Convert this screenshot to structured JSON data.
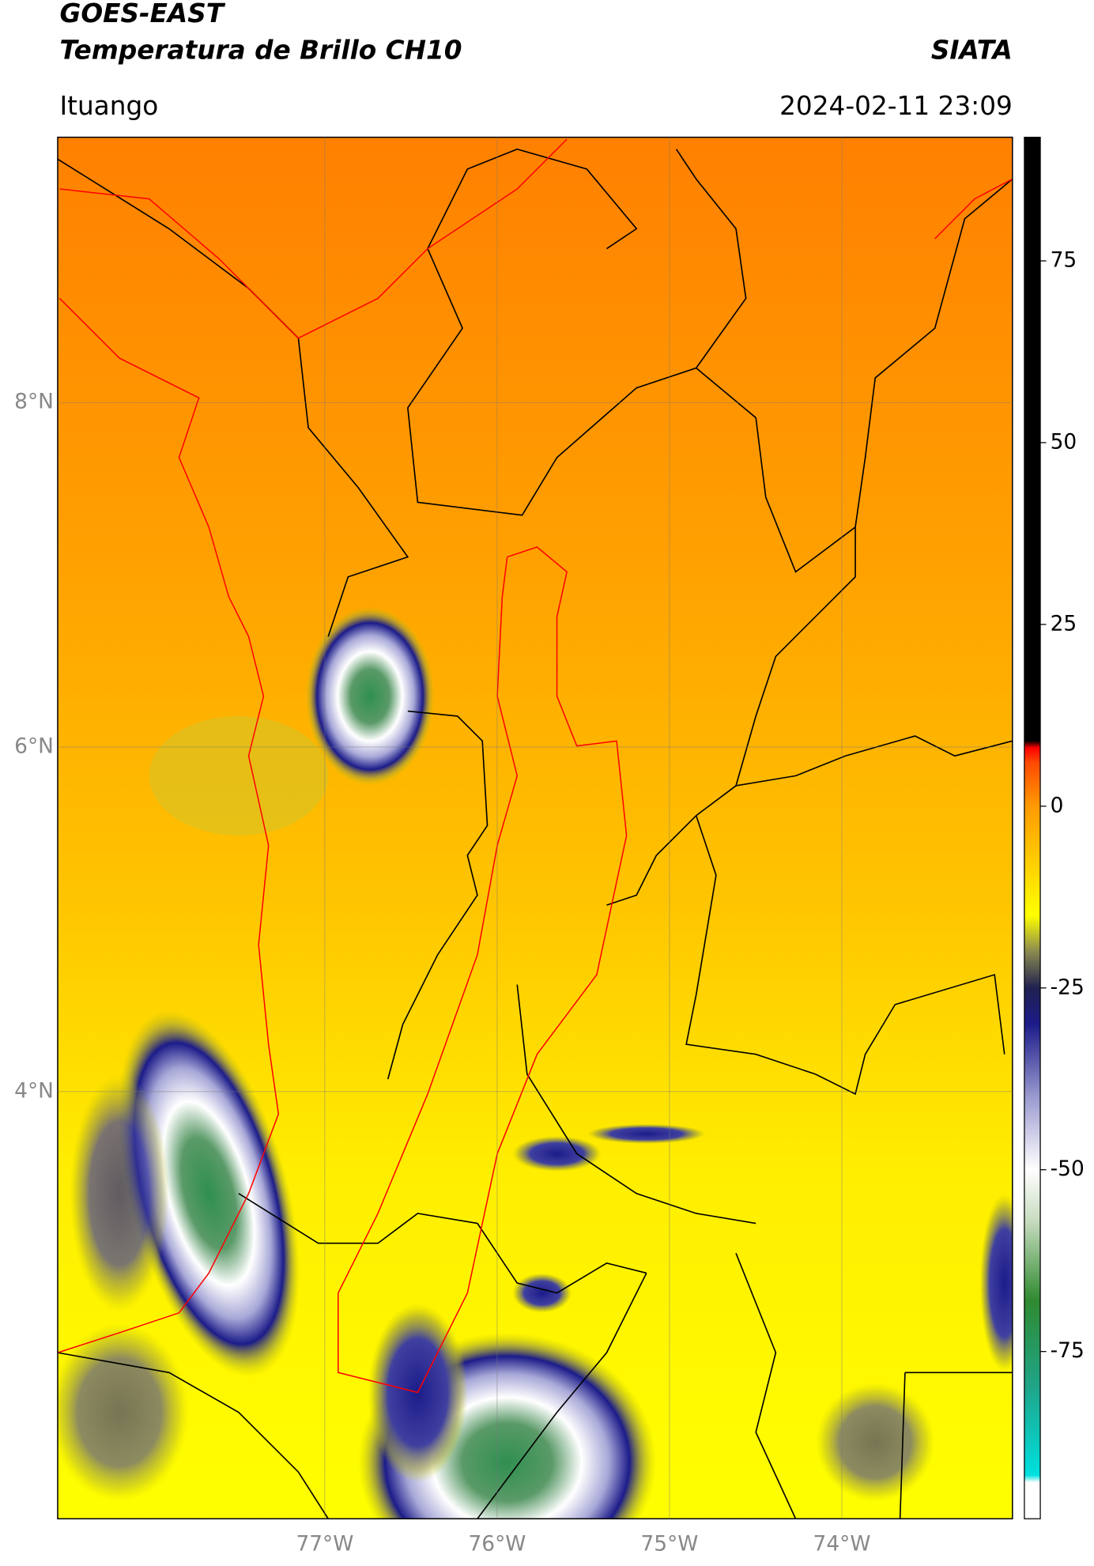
{
  "header": {
    "title": "GOES-EAST",
    "subtitle": "Temperatura de Brillo CH10",
    "source": "SIATA",
    "location": "Ituango",
    "datetime": "2024-02-11 23:09"
  },
  "map": {
    "xlim": [
      -78.55,
      -73.01
    ],
    "ylim": [
      1.52,
      9.54
    ],
    "xticks": [
      {
        "value": -77,
        "label": "77°W"
      },
      {
        "value": -76,
        "label": "76°W"
      },
      {
        "value": -75,
        "label": "75°W"
      },
      {
        "value": -74,
        "label": "74°W"
      }
    ],
    "yticks": [
      {
        "value": 8,
        "label": "8°N"
      },
      {
        "value": 6,
        "label": "6°N"
      },
      {
        "value": 4,
        "label": "4°N"
      }
    ],
    "grid": true
  },
  "colorbar": {
    "lim": [
      -98,
      92
    ],
    "ticks": [
      75,
      50,
      25,
      0,
      -25,
      -50,
      -75
    ],
    "colormap": [
      {
        "value": -98,
        "color": "#ffffff"
      },
      {
        "value": -93,
        "color": "#ffffff"
      },
      {
        "value": -92,
        "color": "#00e0e0"
      },
      {
        "value": -80,
        "color": "#1fa58a"
      },
      {
        "value": -68,
        "color": "#2f8a30"
      },
      {
        "value": -57,
        "color": "#c8dcc0"
      },
      {
        "value": -50,
        "color": "#ffffff"
      },
      {
        "value": -40,
        "color": "#9a9ad0"
      },
      {
        "value": -30,
        "color": "#1c1c8a"
      },
      {
        "value": -25,
        "color": "#202050"
      },
      {
        "value": -20,
        "color": "#8a8a50"
      },
      {
        "value": -15,
        "color": "#ffff00"
      },
      {
        "value": 0,
        "color": "#ff9a00"
      },
      {
        "value": 6,
        "color": "#ff4a00"
      },
      {
        "value": 8,
        "color": "#ff0000"
      },
      {
        "value": 9,
        "color": "#000000"
      },
      {
        "value": 92,
        "color": "#000000"
      }
    ]
  }
}
